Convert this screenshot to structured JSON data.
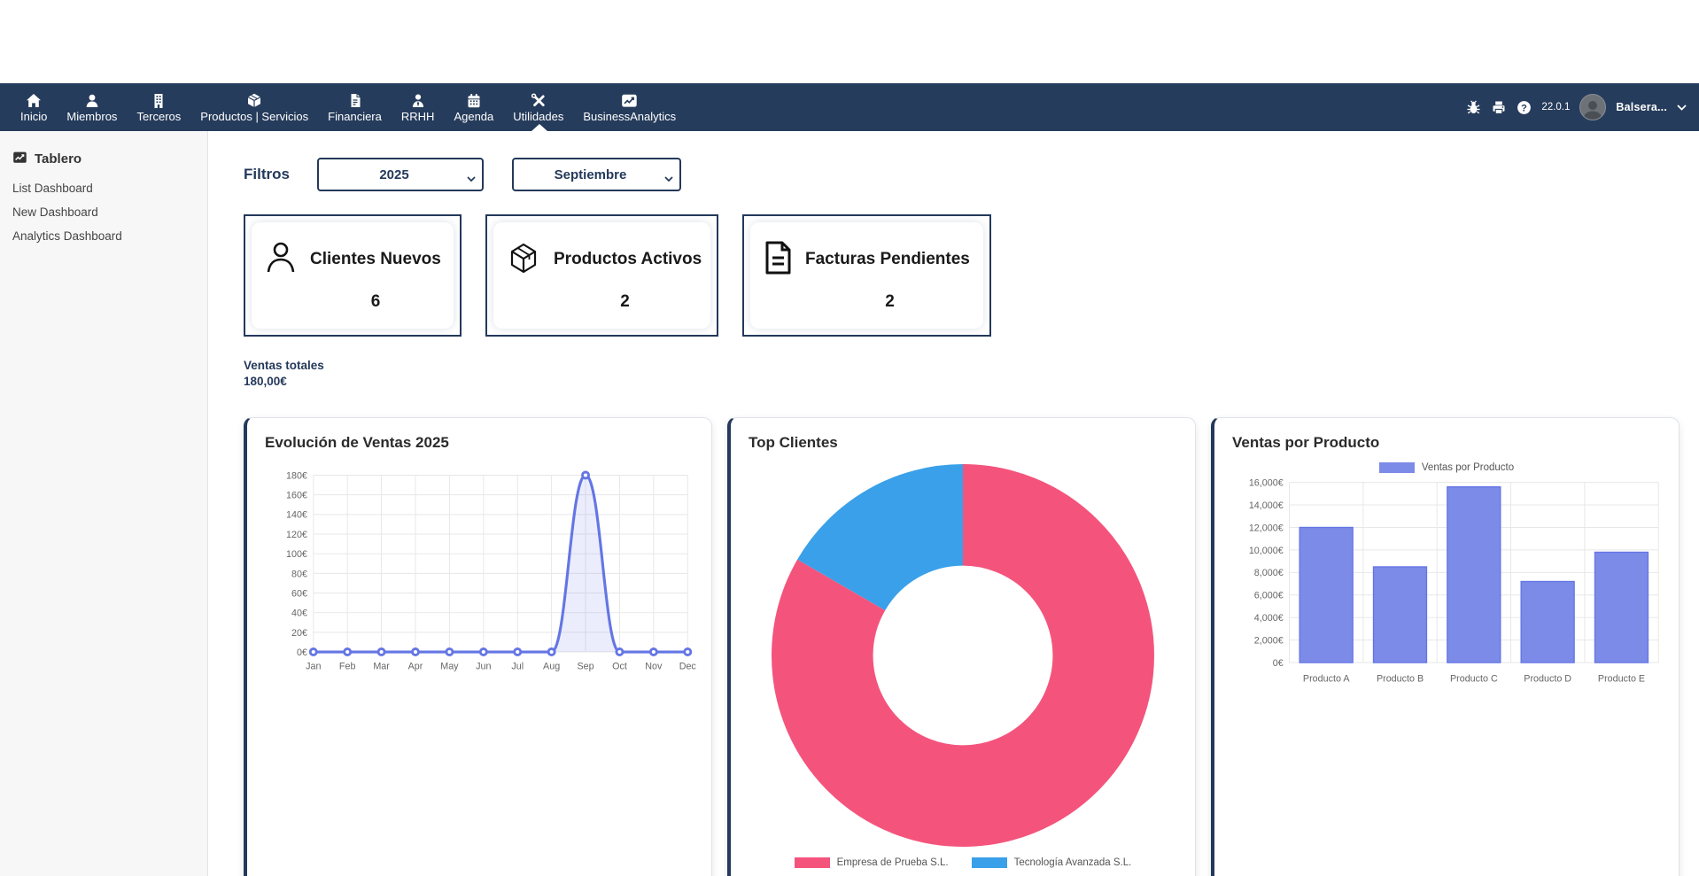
{
  "topbar": {
    "items": [
      {
        "label": "Inicio",
        "icon": "home-icon",
        "active": false
      },
      {
        "label": "Miembros",
        "icon": "member-icon",
        "active": false
      },
      {
        "label": "Terceros",
        "icon": "building-icon",
        "active": false
      },
      {
        "label": "Productos | Servicios",
        "icon": "cube-icon",
        "active": false
      },
      {
        "label": "Financiera",
        "icon": "invoice-icon",
        "active": false
      },
      {
        "label": "RRHH",
        "icon": "user-tie-icon",
        "active": false
      },
      {
        "label": "Agenda",
        "icon": "calendar-icon",
        "active": false
      },
      {
        "label": "Utilidades",
        "icon": "tools-icon",
        "active": false
      },
      {
        "label": "BusinessAnalytics",
        "icon": "chart-icon",
        "active": true
      }
    ],
    "right": {
      "icons": [
        "bug-icon",
        "printer-icon",
        "help-icon"
      ],
      "version": "22.0.1",
      "user": "Balsera..."
    }
  },
  "sidebar": {
    "header": "Tablero",
    "items": [
      {
        "label": "List Dashboard"
      },
      {
        "label": "New Dashboard"
      },
      {
        "label": "Analytics Dashboard"
      }
    ]
  },
  "filters": {
    "label": "Filtros",
    "year": "2025",
    "month": "Septiembre"
  },
  "kpis": [
    {
      "title": "Clientes Nuevos",
      "value": "6",
      "icon": "person-icon"
    },
    {
      "title": "Productos Activos",
      "value": "2",
      "icon": "package-icon"
    },
    {
      "title": "Facturas Pendientes",
      "value": "2",
      "icon": "document-icon"
    }
  ],
  "totals": {
    "label": "Ventas totales",
    "value": "180,00€"
  },
  "chart_data": [
    {
      "type": "line",
      "title": "Evolución de Ventas 2025",
      "categories": [
        "Jan",
        "Feb",
        "Mar",
        "Apr",
        "May",
        "Jun",
        "Jul",
        "Aug",
        "Sep",
        "Oct",
        "Nov",
        "Dec"
      ],
      "values": [
        0,
        0,
        0,
        0,
        0,
        0,
        0,
        0,
        180,
        0,
        0,
        0
      ],
      "ylim": [
        0,
        180
      ],
      "ytick_step": 20,
      "ytick_suffix": "€",
      "grid": true,
      "line_color": "#6476E4",
      "fill_color": "rgba(100,118,228,0.13)"
    },
    {
      "type": "pie",
      "subtype": "doughnut",
      "title": "Top Clientes",
      "labels": [
        "Empresa de Prueba S.L.",
        "Tecnología Avanzada S.L."
      ],
      "values": [
        150,
        30
      ],
      "colors": [
        "#F4547C",
        "#3AA0E9"
      ],
      "legend_position": "bottom"
    },
    {
      "type": "bar",
      "title": "Ventas por Producto",
      "legend_label": "Ventas por Producto",
      "categories": [
        "Producto A",
        "Producto B",
        "Producto C",
        "Producto D",
        "Producto E"
      ],
      "values": [
        12000,
        8500,
        15600,
        7200,
        9800
      ],
      "ylim": [
        0,
        16000
      ],
      "ytick_step": 2000,
      "ytick_suffix": "€",
      "grid": true,
      "bar_color": "#7C8BE8",
      "bar_border": "#6476E4",
      "legend_position": "top"
    }
  ],
  "colors": {
    "navbar": "#263C5C",
    "accent_border": "#24395B",
    "pink": "#F4547C",
    "blue": "#3AA0E9",
    "indigo": "#6476E4"
  }
}
